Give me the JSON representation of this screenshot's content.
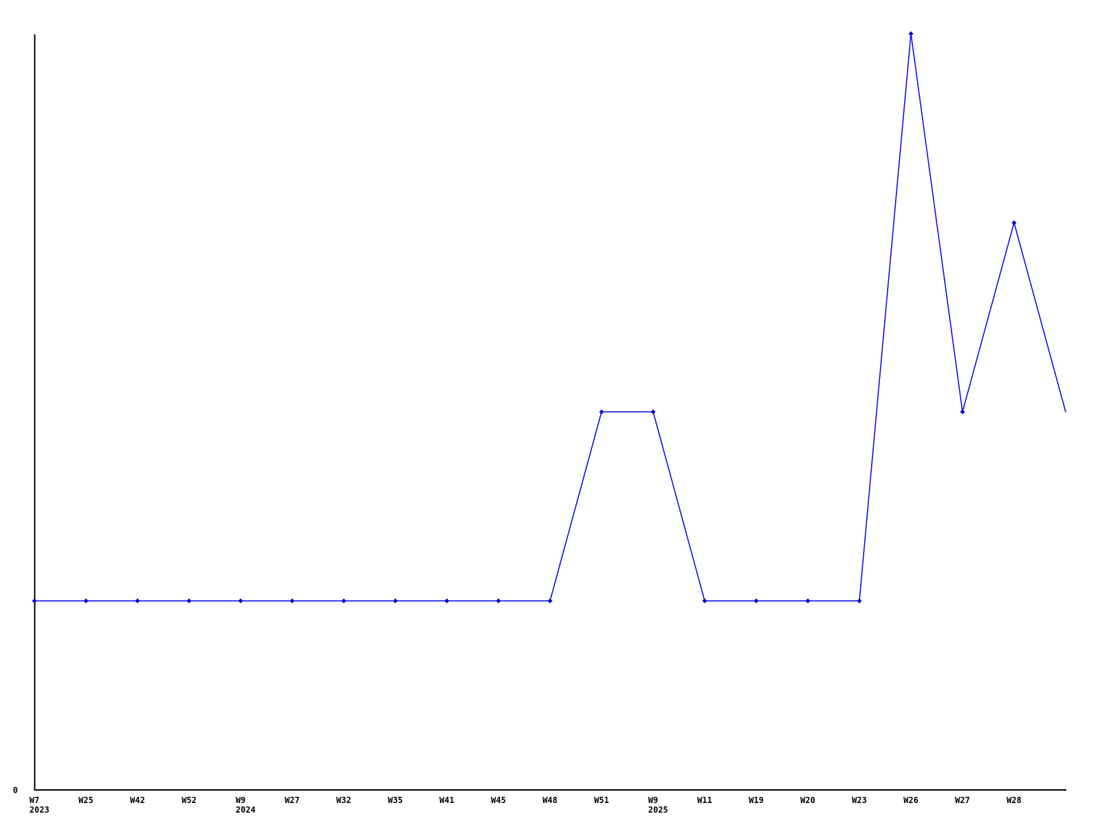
{
  "chart_data": {
    "type": "line",
    "title": "",
    "x_axis": {
      "tick_labels": [
        {
          "week": "W7",
          "year": "2023"
        },
        {
          "week": "W25"
        },
        {
          "week": "W42"
        },
        {
          "week": "W52"
        },
        {
          "week": "W9",
          "year": "2024"
        },
        {
          "week": "W27"
        },
        {
          "week": "W32"
        },
        {
          "week": "W35"
        },
        {
          "week": "W41"
        },
        {
          "week": "W45"
        },
        {
          "week": "W48"
        },
        {
          "week": "W51"
        },
        {
          "week": "W9",
          "year": "2025"
        },
        {
          "week": "W11"
        },
        {
          "week": "W19"
        },
        {
          "week": "W20"
        },
        {
          "week": "W23"
        },
        {
          "week": "W26"
        },
        {
          "week": "W27"
        },
        {
          "week": "W28"
        }
      ]
    },
    "y_axis": {
      "zero_label": "0",
      "min": 0,
      "max": 4
    },
    "series": [
      {
        "values": [
          1,
          1,
          1,
          1,
          1,
          1,
          1,
          1,
          1,
          1,
          1,
          2,
          2,
          1,
          1,
          1,
          1,
          4,
          2,
          3
        ],
        "extension_value": 2
      }
    ],
    "colors": {
      "line": "#0000ee",
      "marker": "#0000cc",
      "axis": "#000000",
      "text": "#000000"
    },
    "grid": false,
    "legend": false,
    "markers": true
  }
}
